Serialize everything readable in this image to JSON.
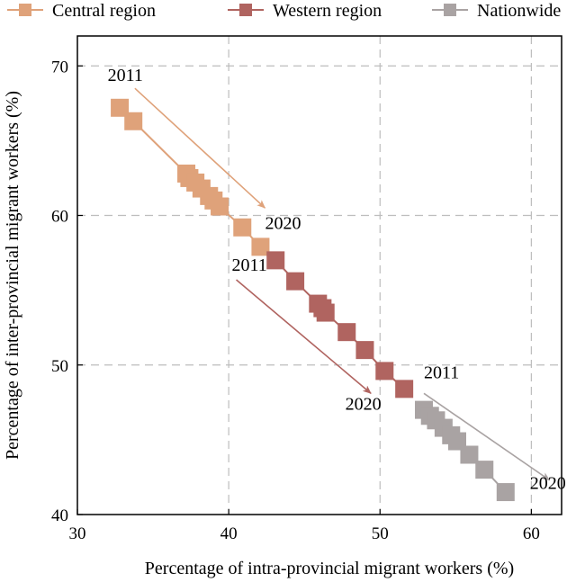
{
  "chart_data": {
    "type": "scatter",
    "title": "",
    "xlabel": "Percentage of intra-provincial migrant workers (%)",
    "ylabel": "Percentage of inter-provincial migrant workers (%)",
    "xlim": [
      30,
      62
    ],
    "ylim": [
      40,
      72
    ],
    "xticks": [
      30,
      40,
      50,
      60
    ],
    "yticks": [
      40,
      50,
      60,
      70
    ],
    "grid": "dashed",
    "legend_position": "top",
    "series": [
      {
        "name": "Central region",
        "color": "#dfa27a",
        "points": [
          {
            "x": 32.8,
            "y": 67.2
          },
          {
            "x": 33.7,
            "y": 66.3
          },
          {
            "x": 37.2,
            "y": 62.8
          },
          {
            "x": 37.4,
            "y": 62.5
          },
          {
            "x": 37.8,
            "y": 62.2
          },
          {
            "x": 38.2,
            "y": 61.8
          },
          {
            "x": 38.7,
            "y": 61.3
          },
          {
            "x": 39.0,
            "y": 61.0
          },
          {
            "x": 39.4,
            "y": 60.6
          },
          {
            "x": 40.9,
            "y": 59.2
          },
          {
            "x": 42.1,
            "y": 57.9
          }
        ]
      },
      {
        "name": "Western region",
        "color": "#b06460",
        "points": [
          {
            "x": 43.1,
            "y": 57.0
          },
          {
            "x": 44.4,
            "y": 55.6
          },
          {
            "x": 45.9,
            "y": 54.1
          },
          {
            "x": 46.2,
            "y": 53.8
          },
          {
            "x": 46.4,
            "y": 53.5
          },
          {
            "x": 47.8,
            "y": 52.2
          },
          {
            "x": 49.0,
            "y": 51.0
          },
          {
            "x": 50.3,
            "y": 49.6
          },
          {
            "x": 51.6,
            "y": 48.4
          }
        ]
      },
      {
        "name": "Nationwide",
        "color": "#a9a3a3",
        "points": [
          {
            "x": 52.9,
            "y": 47.0
          },
          {
            "x": 53.3,
            "y": 46.6
          },
          {
            "x": 53.7,
            "y": 46.3
          },
          {
            "x": 54.2,
            "y": 45.8
          },
          {
            "x": 54.7,
            "y": 45.3
          },
          {
            "x": 55.1,
            "y": 44.9
          },
          {
            "x": 55.9,
            "y": 44.0
          },
          {
            "x": 56.9,
            "y": 43.0
          },
          {
            "x": 58.3,
            "y": 41.5
          }
        ]
      }
    ],
    "annotations": [
      {
        "from_text": "2011",
        "to_text": "2020",
        "color": "#dfa27a",
        "from": {
          "x": 33.8,
          "y": 68.5
        },
        "to": {
          "x": 42.4,
          "y": 60.5
        },
        "from_label": {
          "x": 32.0,
          "y": 69.0
        },
        "to_label": {
          "x": 42.4,
          "y": 59.1
        }
      },
      {
        "from_text": "2011",
        "to_text": "2020",
        "color": "#b06460",
        "from": {
          "x": 40.5,
          "y": 55.7
        },
        "to": {
          "x": 49.4,
          "y": 48.1
        },
        "from_label": {
          "x": 40.2,
          "y": 56.3
        },
        "to_label": {
          "x": 47.7,
          "y": 47.0
        }
      },
      {
        "from_text": "2011",
        "to_text": "2020",
        "color": "#a9a3a3",
        "from": {
          "x": 52.9,
          "y": 48.1
        },
        "to": {
          "x": 61.2,
          "y": 42.3
        },
        "from_label": {
          "x": 52.9,
          "y": 49.1
        },
        "to_label": {
          "x": 59.9,
          "y": 41.7
        }
      }
    ]
  }
}
